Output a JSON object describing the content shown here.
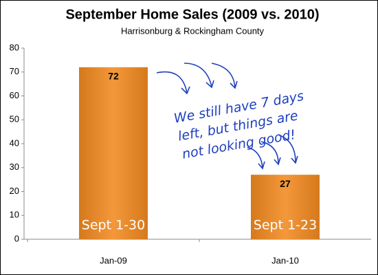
{
  "chart_data": {
    "type": "bar",
    "title": "September Home Sales (2009 vs. 2010)",
    "subtitle": "Harrisonburg & Rockingham County",
    "categories": [
      "Jan-09",
      "Jan-10"
    ],
    "values": [
      72,
      27
    ],
    "color": "#f28a20",
    "ylim": [
      0,
      80
    ],
    "yticks": [
      0,
      10,
      20,
      30,
      40,
      50,
      60,
      70,
      80
    ],
    "bar_annotations": [
      "Sept 1-30",
      "Sept 1-23"
    ],
    "annotation": [
      "We still have 7 days",
      "left, but things are",
      "not looking good!"
    ]
  }
}
